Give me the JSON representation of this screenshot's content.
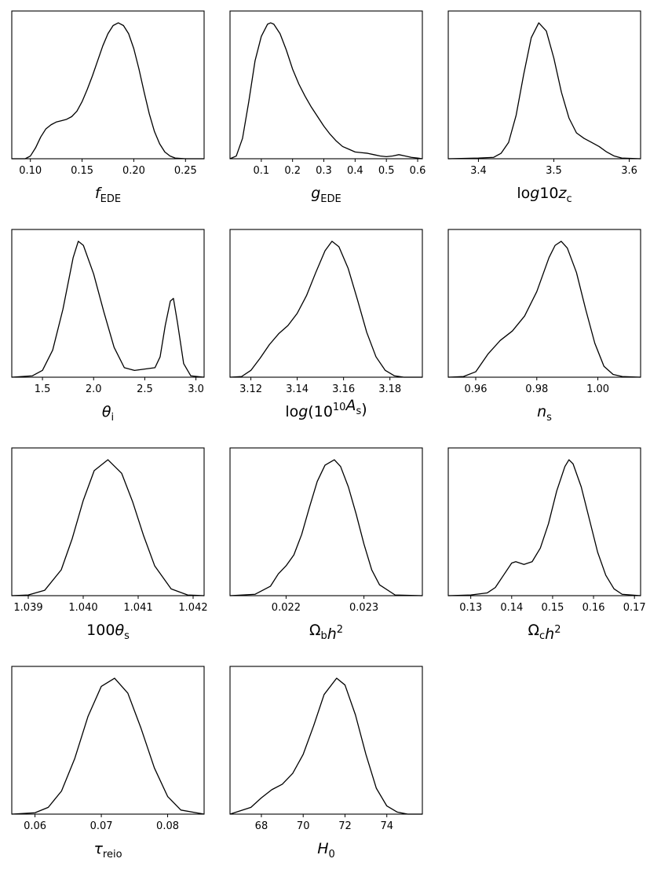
{
  "chart_data": [
    {
      "type": "line",
      "xlabel": "f_EDE",
      "xlim": [
        0.082,
        0.268
      ],
      "ylim": [
        0,
        1
      ],
      "grid": false,
      "xticks": [
        {
          "v": 0.1,
          "label": "0.10"
        },
        {
          "v": 0.15,
          "label": "0.15"
        },
        {
          "v": 0.2,
          "label": "0.20"
        },
        {
          "v": 0.25,
          "label": "0.25"
        }
      ],
      "x": [
        0.082,
        0.095,
        0.1,
        0.105,
        0.11,
        0.115,
        0.12,
        0.125,
        0.13,
        0.135,
        0.14,
        0.145,
        0.15,
        0.155,
        0.16,
        0.165,
        0.17,
        0.175,
        0.18,
        0.185,
        0.19,
        0.195,
        0.2,
        0.205,
        0.21,
        0.215,
        0.22,
        0.225,
        0.23,
        0.235,
        0.24,
        0.25,
        0.268
      ],
      "y": [
        0.0,
        0.0,
        0.02,
        0.08,
        0.16,
        0.22,
        0.25,
        0.27,
        0.28,
        0.29,
        0.31,
        0.35,
        0.42,
        0.51,
        0.61,
        0.72,
        0.83,
        0.92,
        0.98,
        1.0,
        0.98,
        0.92,
        0.81,
        0.66,
        0.49,
        0.33,
        0.2,
        0.11,
        0.05,
        0.02,
        0.005,
        0.0,
        0.0
      ]
    },
    {
      "type": "line",
      "xlabel": "g_EDE",
      "xlim": [
        0.0,
        0.615
      ],
      "ylim": [
        0,
        1
      ],
      "grid": false,
      "xticks": [
        {
          "v": 0.1,
          "label": "0.1"
        },
        {
          "v": 0.2,
          "label": "0.2"
        },
        {
          "v": 0.3,
          "label": "0.3"
        },
        {
          "v": 0.4,
          "label": "0.4"
        },
        {
          "v": 0.5,
          "label": "0.5"
        },
        {
          "v": 0.6,
          "label": "0.6"
        }
      ],
      "x": [
        0.0,
        0.02,
        0.04,
        0.06,
        0.08,
        0.1,
        0.12,
        0.13,
        0.14,
        0.16,
        0.18,
        0.2,
        0.22,
        0.24,
        0.26,
        0.28,
        0.3,
        0.32,
        0.34,
        0.36,
        0.38,
        0.4,
        0.42,
        0.44,
        0.46,
        0.48,
        0.5,
        0.52,
        0.54,
        0.56,
        0.58,
        0.6,
        0.615
      ],
      "y": [
        0.0,
        0.02,
        0.15,
        0.42,
        0.72,
        0.9,
        0.99,
        1.0,
        0.99,
        0.92,
        0.8,
        0.66,
        0.55,
        0.46,
        0.38,
        0.31,
        0.24,
        0.18,
        0.13,
        0.09,
        0.07,
        0.05,
        0.045,
        0.04,
        0.03,
        0.02,
        0.015,
        0.02,
        0.03,
        0.02,
        0.01,
        0.005,
        0.0
      ]
    },
    {
      "type": "line",
      "xlabel": "log10z_c",
      "xlim": [
        3.36,
        3.615
      ],
      "ylim": [
        0,
        1
      ],
      "grid": false,
      "xticks": [
        {
          "v": 3.4,
          "label": "3.4"
        },
        {
          "v": 3.5,
          "label": "3.5"
        },
        {
          "v": 3.6,
          "label": "3.6"
        }
      ],
      "x": [
        3.36,
        3.4,
        3.42,
        3.43,
        3.44,
        3.45,
        3.46,
        3.47,
        3.48,
        3.49,
        3.5,
        3.51,
        3.52,
        3.53,
        3.54,
        3.55,
        3.56,
        3.57,
        3.58,
        3.59,
        3.615
      ],
      "y": [
        0.0,
        0.005,
        0.01,
        0.04,
        0.12,
        0.32,
        0.62,
        0.89,
        1.0,
        0.94,
        0.74,
        0.49,
        0.3,
        0.19,
        0.15,
        0.12,
        0.09,
        0.05,
        0.02,
        0.005,
        0.0
      ]
    },
    {
      "type": "line",
      "xlabel": "θ_i",
      "xlim": [
        1.2,
        3.08
      ],
      "ylim": [
        0,
        1
      ],
      "grid": false,
      "xticks": [
        {
          "v": 1.5,
          "label": "1.5"
        },
        {
          "v": 2.0,
          "label": "2.0"
        },
        {
          "v": 2.5,
          "label": "2.5"
        },
        {
          "v": 3.0,
          "label": "3.0"
        }
      ],
      "x": [
        1.2,
        1.4,
        1.5,
        1.6,
        1.7,
        1.8,
        1.85,
        1.9,
        2.0,
        2.1,
        2.2,
        2.3,
        2.4,
        2.5,
        2.6,
        2.65,
        2.7,
        2.75,
        2.78,
        2.82,
        2.88,
        2.95,
        3.08
      ],
      "y": [
        0.0,
        0.01,
        0.05,
        0.2,
        0.5,
        0.88,
        1.0,
        0.97,
        0.76,
        0.48,
        0.22,
        0.07,
        0.05,
        0.06,
        0.07,
        0.15,
        0.38,
        0.56,
        0.58,
        0.4,
        0.1,
        0.01,
        0.0
      ]
    },
    {
      "type": "line",
      "xlabel": "log(10^10 A_s)",
      "xlim": [
        3.111,
        3.194
      ],
      "ylim": [
        0,
        1
      ],
      "grid": false,
      "xticks": [
        {
          "v": 3.12,
          "label": "3.12"
        },
        {
          "v": 3.14,
          "label": "3.14"
        },
        {
          "v": 3.16,
          "label": "3.16"
        },
        {
          "v": 3.18,
          "label": "3.18"
        }
      ],
      "x": [
        3.111,
        3.116,
        3.12,
        3.124,
        3.128,
        3.132,
        3.136,
        3.14,
        3.144,
        3.148,
        3.152,
        3.155,
        3.158,
        3.162,
        3.166,
        3.17,
        3.174,
        3.178,
        3.182,
        3.186,
        3.194
      ],
      "y": [
        0.0,
        0.005,
        0.05,
        0.14,
        0.24,
        0.32,
        0.38,
        0.47,
        0.6,
        0.77,
        0.93,
        1.0,
        0.96,
        0.8,
        0.57,
        0.33,
        0.15,
        0.05,
        0.01,
        0.0,
        0.0
      ]
    },
    {
      "type": "line",
      "xlabel": "n_s",
      "xlim": [
        0.951,
        1.014
      ],
      "ylim": [
        0,
        1
      ],
      "grid": false,
      "xticks": [
        {
          "v": 0.96,
          "label": "0.96"
        },
        {
          "v": 0.98,
          "label": "0.98"
        },
        {
          "v": 1.0,
          "label": "1.00"
        }
      ],
      "x": [
        0.951,
        0.956,
        0.96,
        0.964,
        0.968,
        0.972,
        0.976,
        0.98,
        0.984,
        0.986,
        0.988,
        0.99,
        0.993,
        0.996,
        0.999,
        1.002,
        1.005,
        1.008,
        1.014
      ],
      "y": [
        0.0,
        0.005,
        0.04,
        0.17,
        0.27,
        0.34,
        0.45,
        0.63,
        0.88,
        0.97,
        1.0,
        0.95,
        0.77,
        0.5,
        0.25,
        0.08,
        0.02,
        0.005,
        0.0
      ]
    },
    {
      "type": "line",
      "xlabel": "100θ_s",
      "xlim": [
        1.0387,
        1.0422
      ],
      "ylim": [
        0,
        1
      ],
      "grid": false,
      "xticks": [
        {
          "v": 1.039,
          "label": "1.039"
        },
        {
          "v": 1.04,
          "label": "1.040"
        },
        {
          "v": 1.041,
          "label": "1.041"
        },
        {
          "v": 1.042,
          "label": "1.042"
        }
      ],
      "x": [
        1.0387,
        1.039,
        1.0393,
        1.0396,
        1.0398,
        1.04,
        1.0402,
        1.04045,
        1.0407,
        1.0409,
        1.0411,
        1.0413,
        1.0416,
        1.0419,
        1.0422
      ],
      "y": [
        0.0,
        0.005,
        0.04,
        0.19,
        0.42,
        0.7,
        0.92,
        1.0,
        0.9,
        0.69,
        0.44,
        0.22,
        0.05,
        0.005,
        0.0
      ]
    },
    {
      "type": "line",
      "xlabel": "Ω_b h^2",
      "xlim": [
        0.02128,
        0.02375
      ],
      "ylim": [
        0,
        1
      ],
      "grid": false,
      "xticks": [
        {
          "v": 0.022,
          "label": "0.022"
        },
        {
          "v": 0.023,
          "label": "0.023"
        }
      ],
      "x": [
        0.02128,
        0.0216,
        0.0218,
        0.0219,
        0.022,
        0.0221,
        0.0222,
        0.0223,
        0.0224,
        0.0225,
        0.02262,
        0.0227,
        0.0228,
        0.0229,
        0.023,
        0.0231,
        0.0232,
        0.0234,
        0.02375
      ],
      "y": [
        0.0,
        0.01,
        0.07,
        0.16,
        0.22,
        0.3,
        0.45,
        0.65,
        0.84,
        0.96,
        1.0,
        0.95,
        0.8,
        0.6,
        0.38,
        0.19,
        0.08,
        0.005,
        0.0
      ]
    },
    {
      "type": "line",
      "xlabel": "Ω_c h^2",
      "xlim": [
        0.1245,
        0.1715
      ],
      "ylim": [
        0,
        1
      ],
      "grid": false,
      "xticks": [
        {
          "v": 0.13,
          "label": "0.13"
        },
        {
          "v": 0.14,
          "label": "0.14"
        },
        {
          "v": 0.15,
          "label": "0.15"
        },
        {
          "v": 0.16,
          "label": "0.16"
        },
        {
          "v": 0.17,
          "label": "0.17"
        }
      ],
      "x": [
        0.1245,
        0.13,
        0.134,
        0.136,
        0.138,
        0.14,
        0.141,
        0.142,
        0.143,
        0.145,
        0.147,
        0.149,
        0.151,
        0.153,
        0.154,
        0.155,
        0.157,
        0.159,
        0.161,
        0.163,
        0.165,
        0.167,
        0.1715
      ],
      "y": [
        0.0,
        0.005,
        0.02,
        0.06,
        0.15,
        0.24,
        0.25,
        0.24,
        0.23,
        0.25,
        0.35,
        0.53,
        0.77,
        0.95,
        1.0,
        0.97,
        0.8,
        0.56,
        0.32,
        0.15,
        0.05,
        0.01,
        0.0
      ]
    },
    {
      "type": "line",
      "xlabel": "τ_reio",
      "xlim": [
        0.0565,
        0.0855
      ],
      "ylim": [
        0,
        1
      ],
      "grid": false,
      "xticks": [
        {
          "v": 0.06,
          "label": "0.06"
        },
        {
          "v": 0.07,
          "label": "0.07"
        },
        {
          "v": 0.08,
          "label": "0.08"
        }
      ],
      "x": [
        0.0565,
        0.06,
        0.062,
        0.064,
        0.066,
        0.068,
        0.07,
        0.072,
        0.074,
        0.076,
        0.078,
        0.08,
        0.082,
        0.0855
      ],
      "y": [
        0.0,
        0.01,
        0.05,
        0.17,
        0.41,
        0.72,
        0.94,
        1.0,
        0.89,
        0.63,
        0.34,
        0.13,
        0.03,
        0.0
      ]
    },
    {
      "type": "line",
      "xlabel": "H_0",
      "xlim": [
        66.5,
        75.7
      ],
      "ylim": [
        0,
        1
      ],
      "grid": false,
      "xticks": [
        {
          "v": 68,
          "label": "68"
        },
        {
          "v": 70,
          "label": "70"
        },
        {
          "v": 72,
          "label": "72"
        },
        {
          "v": 74,
          "label": "74"
        }
      ],
      "x": [
        66.5,
        67.5,
        68.0,
        68.5,
        69.0,
        69.5,
        70.0,
        70.5,
        71.0,
        71.6,
        72.0,
        72.5,
        73.0,
        73.5,
        74.0,
        74.5,
        75.0,
        75.7
      ],
      "y": [
        0.0,
        0.05,
        0.12,
        0.18,
        0.22,
        0.3,
        0.44,
        0.65,
        0.88,
        1.0,
        0.95,
        0.73,
        0.44,
        0.19,
        0.06,
        0.015,
        0.0,
        0.0
      ]
    }
  ]
}
